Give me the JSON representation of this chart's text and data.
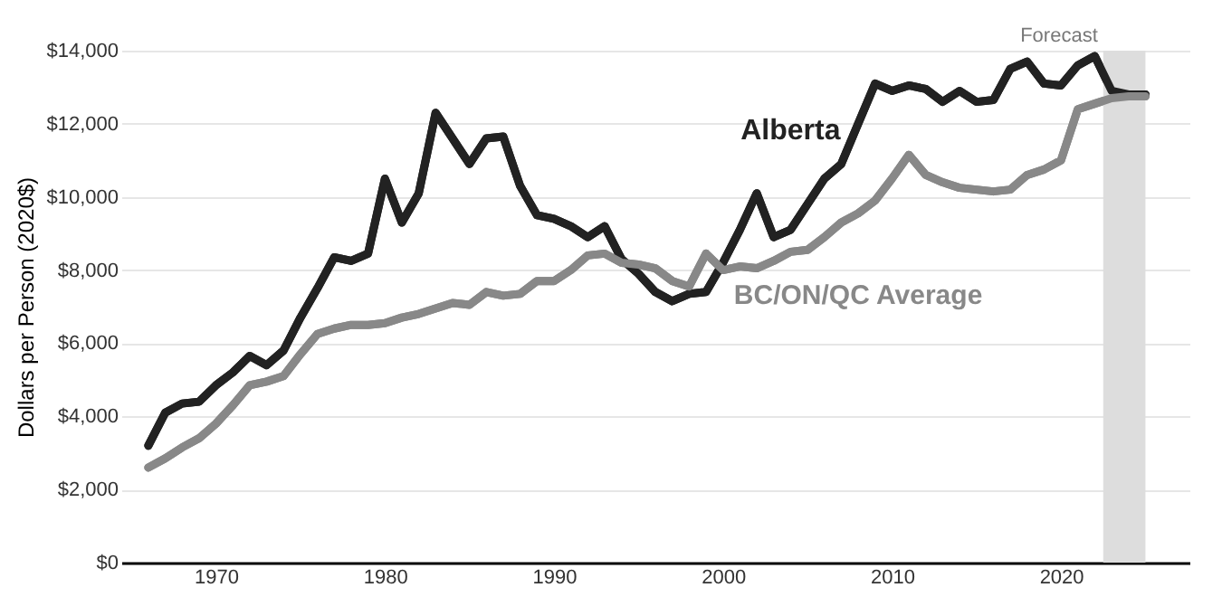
{
  "chart_data": {
    "type": "line",
    "ylabel": "Dollars per Person (2020$)",
    "x": [
      1966,
      1967,
      1968,
      1969,
      1970,
      1971,
      1972,
      1973,
      1974,
      1975,
      1976,
      1977,
      1978,
      1979,
      1980,
      1981,
      1982,
      1983,
      1984,
      1985,
      1986,
      1987,
      1988,
      1989,
      1990,
      1991,
      1992,
      1993,
      1994,
      1995,
      1996,
      1997,
      1998,
      1999,
      2000,
      2001,
      2002,
      2003,
      2004,
      2005,
      2006,
      2007,
      2008,
      2009,
      2010,
      2011,
      2012,
      2013,
      2014,
      2015,
      2016,
      2017,
      2018,
      2019,
      2020,
      2021,
      2022,
      2023,
      2024,
      2025
    ],
    "series": [
      {
        "name": "Alberta",
        "color": "#222222",
        "values": [
          3200,
          4100,
          4350,
          4400,
          4850,
          5200,
          5650,
          5400,
          5800,
          6700,
          7500,
          8350,
          8250,
          8450,
          10500,
          9300,
          10100,
          12300,
          11600,
          10900,
          11600,
          11650,
          10300,
          9500,
          9400,
          9200,
          8900,
          9200,
          8300,
          7900,
          7400,
          7150,
          7350,
          7400,
          8200,
          9100,
          10100,
          8900,
          9100,
          9800,
          10500,
          10900,
          12000,
          13100,
          12900,
          13050,
          12950,
          12600,
          12900,
          12600,
          12650,
          13500,
          13700,
          13100,
          13050,
          13600,
          13850,
          12900,
          12800,
          12800
        ]
      },
      {
        "name": "BC/ON/QC Average",
        "color": "#888888",
        "values": [
          2600,
          2850,
          3150,
          3400,
          3800,
          4300,
          4850,
          4950,
          5100,
          5700,
          6250,
          6400,
          6500,
          6500,
          6550,
          6700,
          6800,
          6950,
          7100,
          7050,
          7400,
          7300,
          7350,
          7700,
          7700,
          8000,
          8400,
          8450,
          8200,
          8150,
          8050,
          7700,
          7550,
          8450,
          8000,
          8100,
          8050,
          8250,
          8500,
          8550,
          8900,
          9300,
          9550,
          9900,
          10500,
          11150,
          10600,
          10400,
          10250,
          10200,
          10150,
          10200,
          10600,
          10750,
          11000,
          12400,
          12550,
          12700,
          12750,
          12750
        ]
      }
    ],
    "xlim": [
      1964.4,
      2027.6
    ],
    "xticks": [
      1970,
      1980,
      1990,
      2000,
      2010,
      2020
    ],
    "ylim": [
      0,
      14000
    ],
    "yticks": [
      {
        "value": 0,
        "label": "$0"
      },
      {
        "value": 2000,
        "label": "$2,000"
      },
      {
        "value": 4000,
        "label": "$4,000"
      },
      {
        "value": 6000,
        "label": "$6,000"
      },
      {
        "value": 8000,
        "label": "$8,000"
      },
      {
        "value": 10000,
        "label": "$10,000"
      },
      {
        "value": 12000,
        "label": "$12,000"
      },
      {
        "value": 14000,
        "label": "$14,000"
      }
    ],
    "bands": [
      {
        "axis": "x",
        "from": 2022.5,
        "to": 2025,
        "label": "Forecast",
        "color": "#dddddd"
      }
    ],
    "grid": "y",
    "marker": "none",
    "line_style": "solid"
  }
}
